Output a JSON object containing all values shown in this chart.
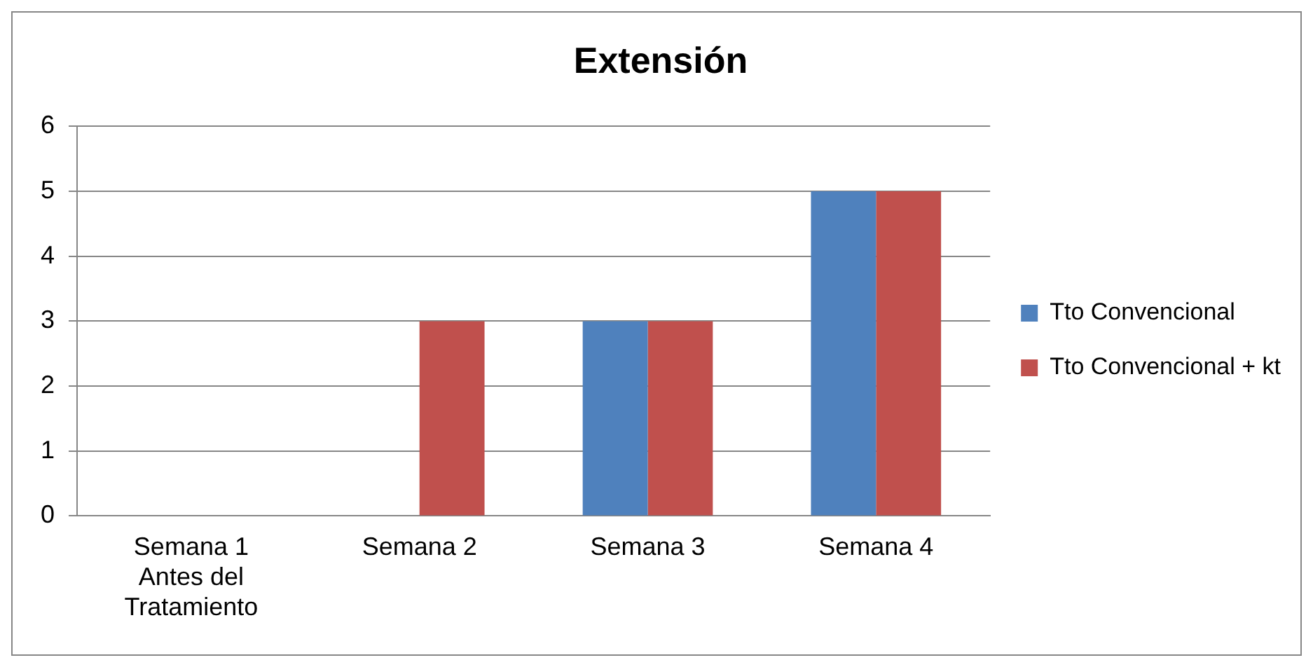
{
  "chart_data": {
    "type": "bar",
    "title": "Extensión",
    "categories": [
      "Semana 1 Antes del Tratamiento",
      "Semana 2",
      "Semana 3",
      "Semana 4"
    ],
    "series": [
      {
        "name": "Tto Convencional",
        "color": "#4f81bd",
        "values": [
          0,
          0,
          3,
          5
        ]
      },
      {
        "name": "Tto Convencional + kt",
        "color": "#c0504d",
        "values": [
          0,
          3,
          3,
          5
        ]
      }
    ],
    "ylim": [
      0,
      6
    ],
    "yticks": [
      0,
      1,
      2,
      3,
      4,
      5,
      6
    ],
    "grid": "y",
    "legend": "right"
  }
}
